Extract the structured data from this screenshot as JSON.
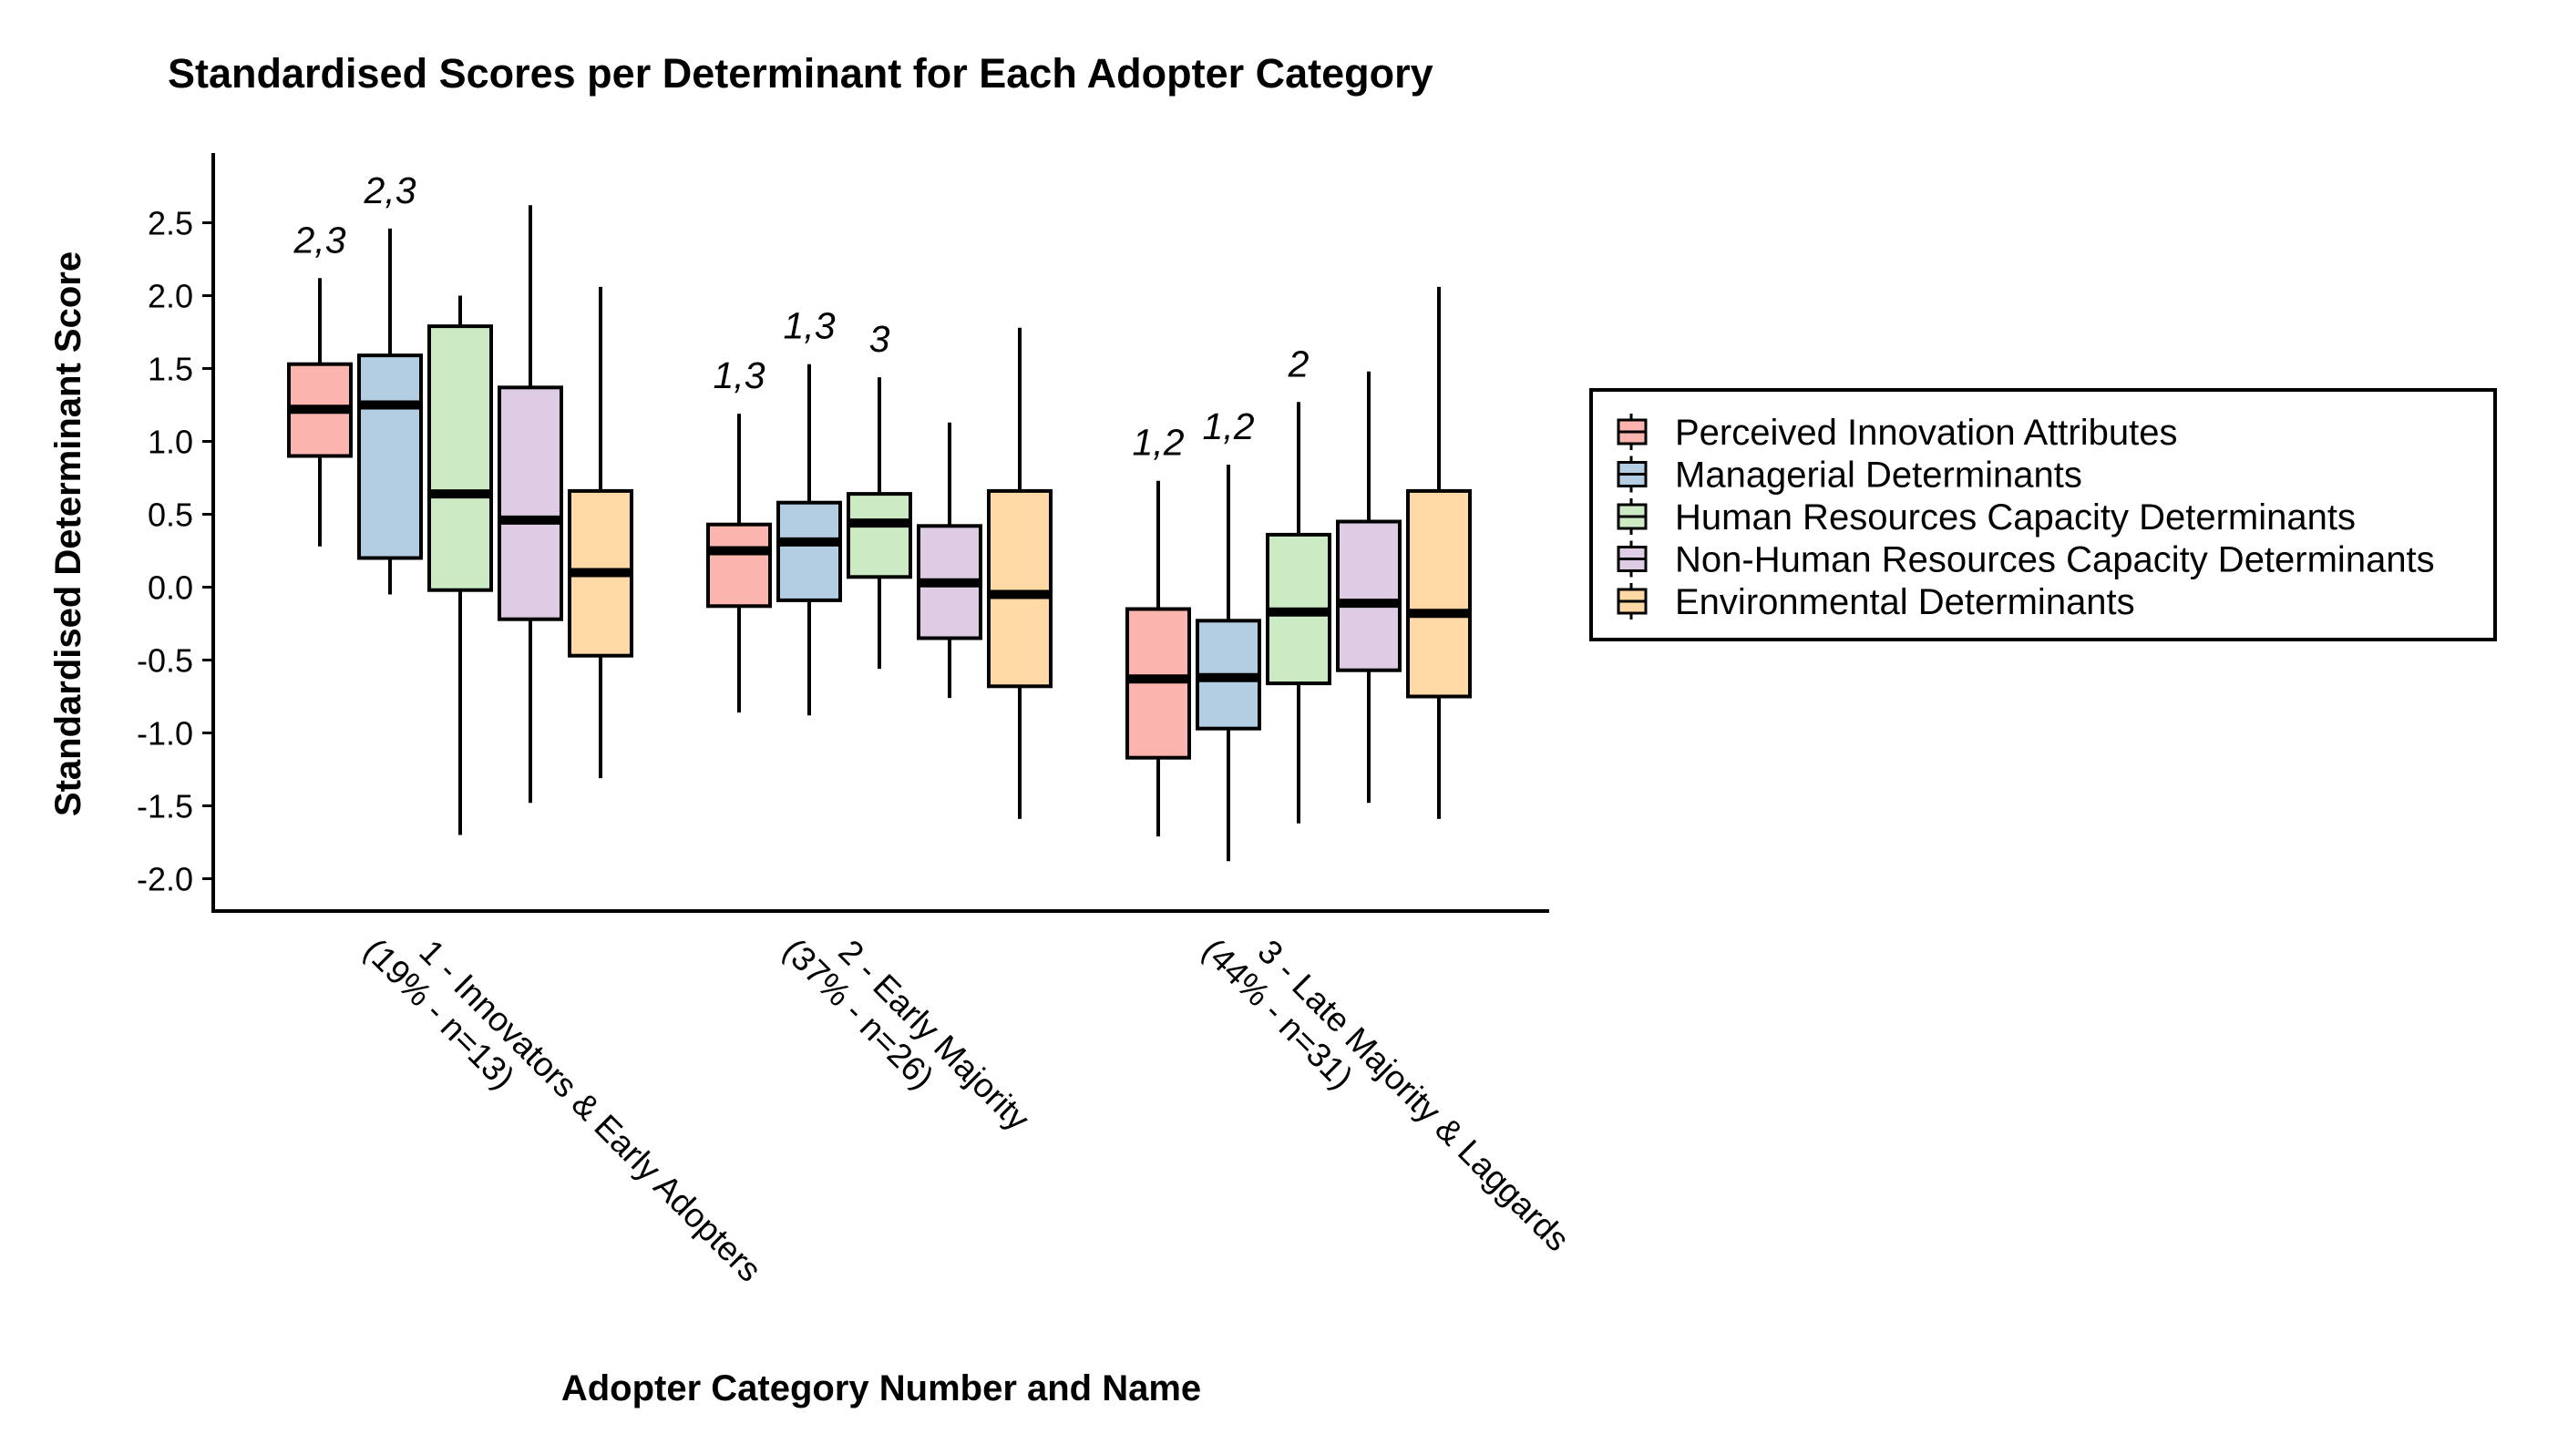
{
  "chart_data": {
    "type": "boxplot",
    "title": "Standardised Scores per Determinant for Each Adopter Category",
    "xlabel": "Adopter Category Number and Name",
    "ylabel": "Standardised Determinant Score",
    "ylim": [
      -2.2,
      2.95
    ],
    "yticks": [
      {
        "value": 2.5,
        "label": "2.5"
      },
      {
        "value": 2.0,
        "label": "2.0"
      },
      {
        "value": 1.5,
        "label": "1.5"
      },
      {
        "value": 1.0,
        "label": "1.0"
      },
      {
        "value": 0.5,
        "label": "0.5"
      },
      {
        "value": 0.0,
        "label": "0.0"
      },
      {
        "value": -0.5,
        "label": "-0.5"
      },
      {
        "value": -1.0,
        "label": "-1.0"
      },
      {
        "value": -1.5,
        "label": "-1.5"
      },
      {
        "value": -2.0,
        "label": "-2.0"
      }
    ],
    "categories": [
      {
        "lines": [
          "1 - Innovators & Early Adopters",
          "(19% - n=13)"
        ]
      },
      {
        "lines": [
          "2 - Early Majority",
          "(37% - n=26)"
        ]
      },
      {
        "lines": [
          "3 - Late Majority & Laggards",
          "(44% - n=31)"
        ]
      }
    ],
    "legend_position": "right",
    "grid": false,
    "series": [
      {
        "name": "Perceived Innovation Attributes",
        "color": "#FBB4AE",
        "boxes": [
          {
            "min": 0.28,
            "q1": 0.9,
            "median": 1.22,
            "q3": 1.53,
            "max": 2.12,
            "annotation": "2,3"
          },
          {
            "min": -0.86,
            "q1": -0.13,
            "median": 0.25,
            "q3": 0.43,
            "max": 1.19,
            "annotation": "1,3"
          },
          {
            "min": -1.71,
            "q1": -1.17,
            "median": -0.63,
            "q3": -0.15,
            "max": 0.73,
            "annotation": "1,2"
          }
        ]
      },
      {
        "name": "Managerial Determinants",
        "color": "#B3CDE3",
        "boxes": [
          {
            "min": -0.05,
            "q1": 0.2,
            "median": 1.25,
            "q3": 1.59,
            "max": 2.46,
            "annotation": "2,3"
          },
          {
            "min": -0.88,
            "q1": -0.09,
            "median": 0.31,
            "q3": 0.58,
            "max": 1.53,
            "annotation": "1,3"
          },
          {
            "min": -1.88,
            "q1": -0.97,
            "median": -0.62,
            "q3": -0.23,
            "max": 0.84,
            "annotation": "1,2"
          }
        ]
      },
      {
        "name": "Human Resources Capacity Determinants",
        "color": "#CCEBC5",
        "boxes": [
          {
            "min": -1.7,
            "q1": -0.02,
            "median": 0.64,
            "q3": 1.79,
            "max": 2.0,
            "annotation": ""
          },
          {
            "min": -0.56,
            "q1": 0.07,
            "median": 0.44,
            "q3": 0.64,
            "max": 1.44,
            "annotation": "3"
          },
          {
            "min": -1.62,
            "q1": -0.66,
            "median": -0.17,
            "q3": 0.36,
            "max": 1.27,
            "annotation": "2"
          }
        ]
      },
      {
        "name": "Non-Human Resources Capacity Determinants",
        "color": "#DECBE4",
        "boxes": [
          {
            "min": -1.48,
            "q1": -0.22,
            "median": 0.46,
            "q3": 1.37,
            "max": 2.62,
            "annotation": ""
          },
          {
            "min": -0.76,
            "q1": -0.35,
            "median": 0.03,
            "q3": 0.42,
            "max": 1.13,
            "annotation": ""
          },
          {
            "min": -1.48,
            "q1": -0.57,
            "median": -0.11,
            "q3": 0.45,
            "max": 1.48,
            "annotation": ""
          }
        ]
      },
      {
        "name": "Environmental Determinants",
        "color": "#FED9A6",
        "boxes": [
          {
            "min": -1.31,
            "q1": -0.47,
            "median": 0.1,
            "q3": 0.66,
            "max": 2.06,
            "annotation": ""
          },
          {
            "min": -1.59,
            "q1": -0.68,
            "median": -0.05,
            "q3": 0.66,
            "max": 1.78,
            "annotation": ""
          },
          {
            "min": -1.59,
            "q1": -0.75,
            "median": -0.18,
            "q3": 0.66,
            "max": 2.06,
            "annotation": ""
          }
        ]
      }
    ]
  }
}
